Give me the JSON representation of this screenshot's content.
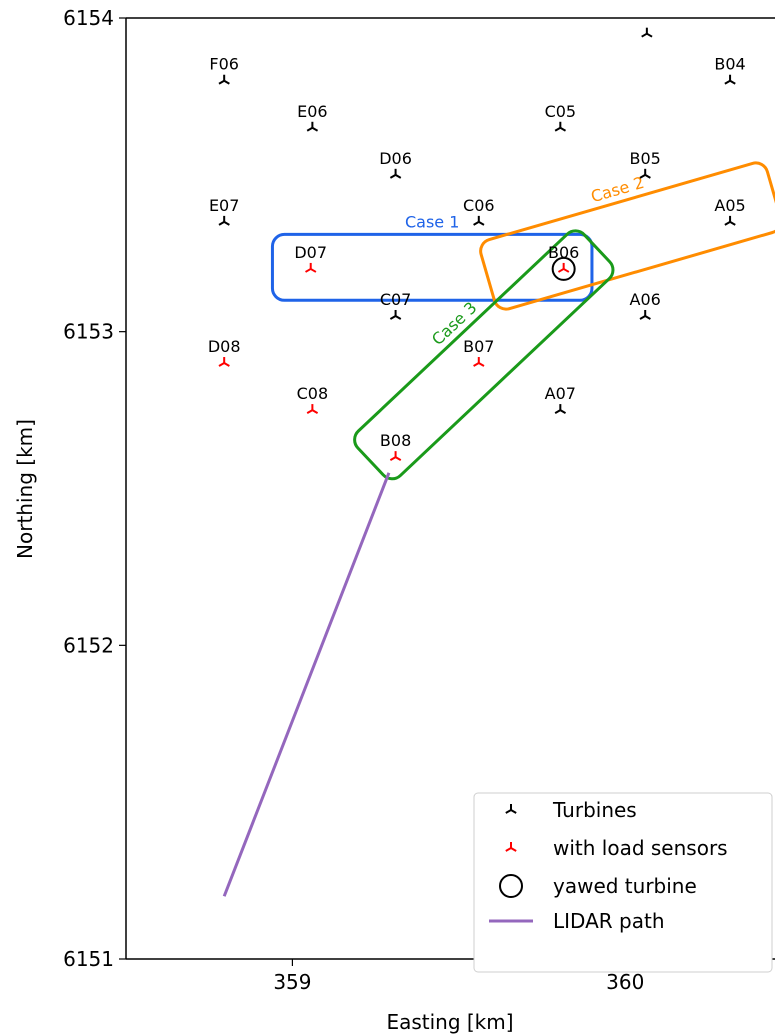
{
  "chart_data": {
    "type": "scatter",
    "xlabel": "Easting [km]",
    "ylabel": "Northing [km]",
    "xlim": [
      358.5,
      360.45
    ],
    "ylim": [
      6151,
      6154
    ],
    "xticks": [
      359,
      360
    ],
    "yticks": [
      6151,
      6152,
      6153,
      6154
    ],
    "xtick_labels": [
      "359",
      "360"
    ],
    "ytick_labels": [
      "6151",
      "6152",
      "6153",
      "6154"
    ],
    "grid": false,
    "legend": {
      "placement": "lower right",
      "entries": [
        {
          "label": "Turbines",
          "color": "#000000",
          "marker": "tri"
        },
        {
          "label": "with load sensors",
          "color": "#ff0000",
          "marker": "tri"
        },
        {
          "label": "yawed turbine",
          "color": "#000000",
          "marker": "circle"
        },
        {
          "label": "LIDAR path",
          "color": "#9467bd",
          "marker": "line"
        }
      ]
    },
    "series": [
      {
        "name": "Turbines",
        "color": "#000000",
        "points": [
          {
            "label": "",
            "x": 360.065,
            "y": 6153.95
          },
          {
            "label": "F06",
            "x": 358.795,
            "y": 6153.8
          },
          {
            "label": "B04",
            "x": 360.315,
            "y": 6153.8
          },
          {
            "label": "E06",
            "x": 359.06,
            "y": 6153.65
          },
          {
            "label": "C05",
            "x": 359.805,
            "y": 6153.65
          },
          {
            "label": "D06",
            "x": 359.31,
            "y": 6153.5
          },
          {
            "label": "B05",
            "x": 360.06,
            "y": 6153.5
          },
          {
            "label": "E07",
            "x": 358.795,
            "y": 6153.35
          },
          {
            "label": "C06",
            "x": 359.56,
            "y": 6153.35
          },
          {
            "label": "A05",
            "x": 360.315,
            "y": 6153.35
          },
          {
            "label": "C07",
            "x": 359.31,
            "y": 6153.05
          },
          {
            "label": "A06",
            "x": 360.06,
            "y": 6153.05
          },
          {
            "label": "A07",
            "x": 359.805,
            "y": 6152.75
          }
        ]
      },
      {
        "name": "with load sensors",
        "color": "#ff0000",
        "points": [
          {
            "label": "D07",
            "x": 359.055,
            "y": 6153.2
          },
          {
            "label": "B06",
            "x": 359.815,
            "y": 6153.2
          },
          {
            "label": "D08",
            "x": 358.795,
            "y": 6152.9
          },
          {
            "label": "B07",
            "x": 359.56,
            "y": 6152.9
          },
          {
            "label": "C08",
            "x": 359.06,
            "y": 6152.75
          },
          {
            "label": "B08",
            "x": 359.31,
            "y": 6152.6
          }
        ]
      },
      {
        "name": "yawed turbine",
        "color": "#000000",
        "points": [
          {
            "label": "",
            "x": 359.815,
            "y": 6153.2
          }
        ]
      },
      {
        "name": "LIDAR path",
        "color": "#9467bd",
        "line": [
          {
            "x": 358.795,
            "y": 6151.2
          },
          {
            "x": 359.29,
            "y": 6152.55
          }
        ]
      }
    ],
    "annotations": [
      {
        "label": "Case 1",
        "color": "#1f63e8",
        "corners": [
          [
            358.94,
            6153.31
          ],
          [
            359.9,
            6153.31
          ],
          [
            359.9,
            6153.1
          ],
          [
            358.94,
            6153.1
          ]
        ]
      },
      {
        "label": "Case 2",
        "color": "#ff8c00",
        "corners": [
          [
            359.557,
            6153.283
          ],
          [
            360.417,
            6153.547
          ],
          [
            360.463,
            6153.323
          ],
          [
            359.603,
            6153.059
          ]
        ]
      },
      {
        "label": "Case 3",
        "color": "#1a9a1a",
        "corners": [
          [
            359.172,
            6152.657
          ],
          [
            359.852,
            6153.337
          ],
          [
            359.942,
            6153.227
          ],
          [
            359.262,
            6152.487
          ]
        ]
      }
    ]
  }
}
